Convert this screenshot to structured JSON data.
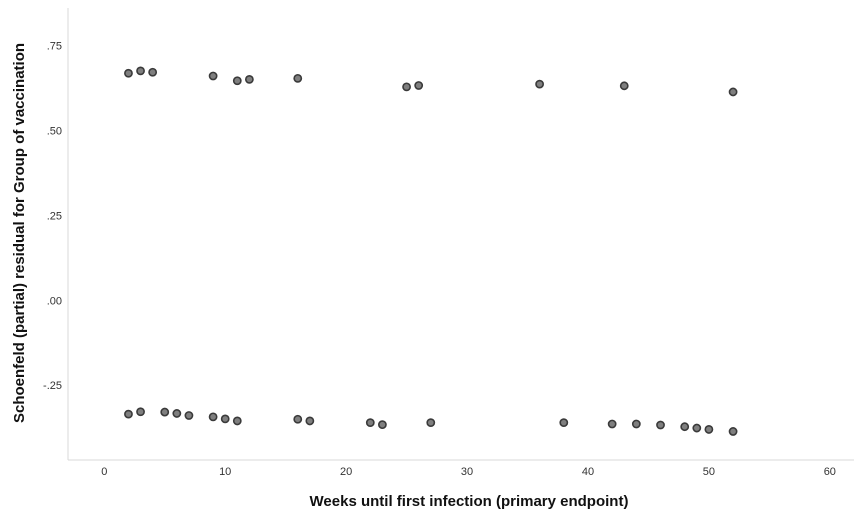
{
  "chart_data": {
    "type": "scatter",
    "xlabel": "Weeks until first infection (primary endpoint)",
    "ylabel": "Schoenfeld (partial) residual for Group of vaccination",
    "xlim": [
      -3,
      62
    ],
    "ylim": [
      -0.47,
      0.86
    ],
    "x_ticks": [
      0,
      10,
      20,
      30,
      40,
      50,
      60
    ],
    "x_tick_labels": [
      "0",
      "10",
      "20",
      "30",
      "40",
      "50",
      "60"
    ],
    "y_ticks": [
      0.75,
      0.5,
      0.25,
      0.0,
      -0.25
    ],
    "y_tick_labels": [
      ".75",
      ".50",
      ".25",
      ".00",
      "-.25"
    ],
    "grid": false,
    "legend": "none",
    "colors": {
      "point_fill": "#7f7f7f",
      "point_stroke": "#3a3a3a",
      "axis": "#d9d9d9"
    },
    "points": [
      {
        "x": 2,
        "y": 0.668
      },
      {
        "x": 3,
        "y": 0.675
      },
      {
        "x": 4,
        "y": 0.671
      },
      {
        "x": 9,
        "y": 0.66
      },
      {
        "x": 11,
        "y": 0.646
      },
      {
        "x": 12,
        "y": 0.65
      },
      {
        "x": 16,
        "y": 0.653
      },
      {
        "x": 25,
        "y": 0.628
      },
      {
        "x": 26,
        "y": 0.632
      },
      {
        "x": 36,
        "y": 0.636
      },
      {
        "x": 43,
        "y": 0.631
      },
      {
        "x": 52,
        "y": 0.613
      },
      {
        "x": 2,
        "y": -0.335
      },
      {
        "x": 3,
        "y": -0.328
      },
      {
        "x": 5,
        "y": -0.329
      },
      {
        "x": 6,
        "y": -0.333
      },
      {
        "x": 7,
        "y": -0.339
      },
      {
        "x": 9,
        "y": -0.343
      },
      {
        "x": 10,
        "y": -0.349
      },
      {
        "x": 11,
        "y": -0.355
      },
      {
        "x": 16,
        "y": -0.35
      },
      {
        "x": 17,
        "y": -0.355
      },
      {
        "x": 22,
        "y": -0.36
      },
      {
        "x": 23,
        "y": -0.366
      },
      {
        "x": 27,
        "y": -0.36
      },
      {
        "x": 38,
        "y": -0.36
      },
      {
        "x": 42,
        "y": -0.364
      },
      {
        "x": 44,
        "y": -0.364
      },
      {
        "x": 46,
        "y": -0.367
      },
      {
        "x": 48,
        "y": -0.372
      },
      {
        "x": 49,
        "y": -0.376
      },
      {
        "x": 50,
        "y": -0.38
      },
      {
        "x": 52,
        "y": -0.386
      }
    ]
  }
}
